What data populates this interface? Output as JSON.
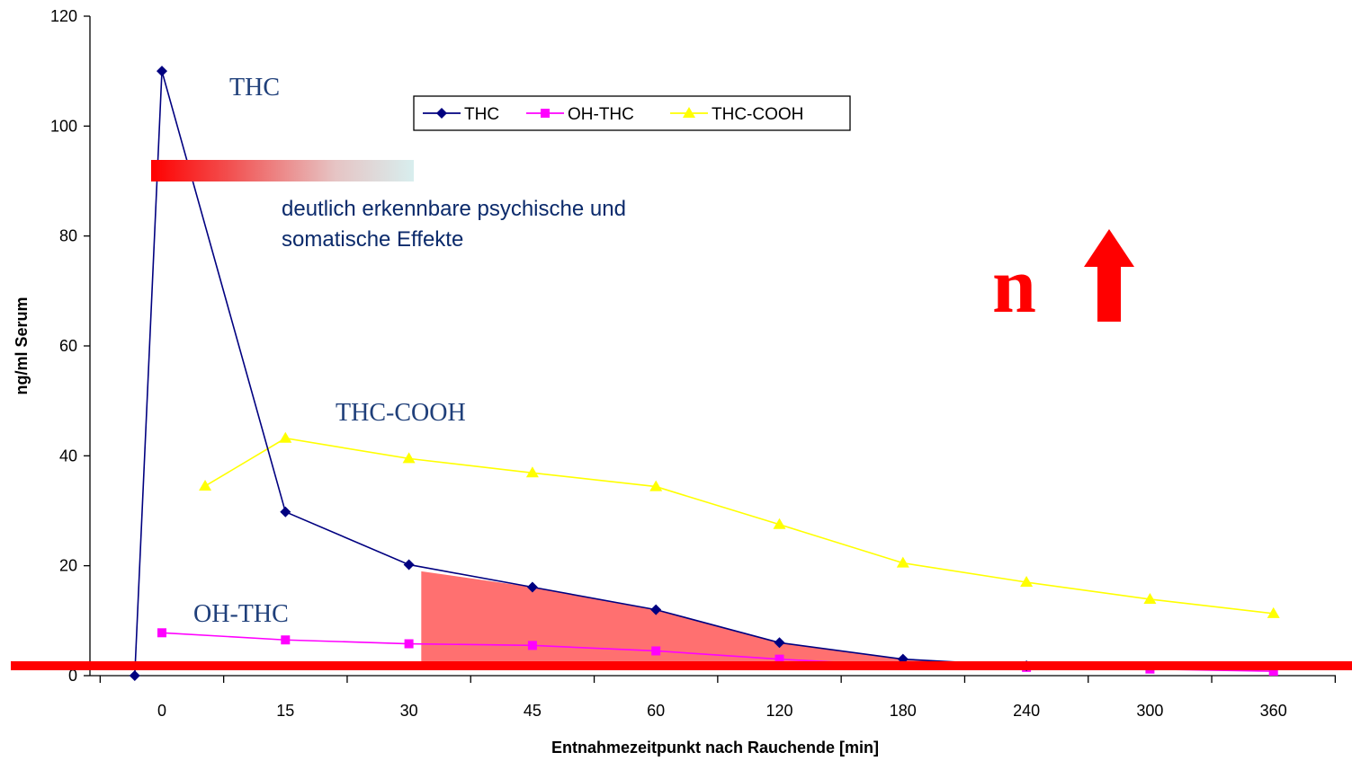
{
  "chart_data": {
    "type": "line",
    "title": "",
    "xlabel": "Entnahmezeitpunkt nach Rauchende [min]",
    "ylabel": "ng/ml Serum",
    "ylim": [
      0,
      120
    ],
    "yticks": [
      0,
      20,
      40,
      60,
      80,
      100,
      120
    ],
    "categories": [
      "0",
      "15",
      "30",
      "45",
      "60",
      "120",
      "180",
      "240",
      "300",
      "360"
    ],
    "series": [
      {
        "name": "THC",
        "color": "#000080",
        "marker": "diamond",
        "points": [
          {
            "x": -0.22,
            "y": 0
          },
          {
            "x": 0,
            "y": 110
          },
          {
            "x": 1,
            "y": 29.8
          },
          {
            "x": 2,
            "y": 20.2
          },
          {
            "x": 3,
            "y": 16.1
          },
          {
            "x": 4,
            "y": 12
          },
          {
            "x": 5,
            "y": 6
          },
          {
            "x": 6,
            "y": 3
          },
          {
            "x": 7,
            "y": 1.8
          }
        ]
      },
      {
        "name": "OH-THC",
        "color": "#ff00ff",
        "marker": "square",
        "points": [
          {
            "x": 0,
            "y": 7.8
          },
          {
            "x": 1,
            "y": 6.5
          },
          {
            "x": 2,
            "y": 5.8
          },
          {
            "x": 3,
            "y": 5.5
          },
          {
            "x": 4,
            "y": 4.5
          },
          {
            "x": 5,
            "y": 3
          },
          {
            "x": 6,
            "y": 1.8
          },
          {
            "x": 7,
            "y": 1.5
          },
          {
            "x": 8,
            "y": 1.2
          },
          {
            "x": 9,
            "y": 0.8
          }
        ]
      },
      {
        "name": "THC-COOH",
        "color": "#ffff00",
        "marker": "triangle",
        "points": [
          {
            "x": 0.35,
            "y": 34.5
          },
          {
            "x": 1,
            "y": 43.2
          },
          {
            "x": 2,
            "y": 39.5
          },
          {
            "x": 3,
            "y": 36.9
          },
          {
            "x": 4,
            "y": 34.4
          },
          {
            "x": 5,
            "y": 27.5
          },
          {
            "x": 6,
            "y": 20.5
          },
          {
            "x": 7,
            "y": 17
          },
          {
            "x": 8,
            "y": 13.9
          },
          {
            "x": 9,
            "y": 11.3
          }
        ]
      }
    ],
    "legend": {
      "position": "top-center",
      "entries": [
        "THC",
        "OH-THC",
        "THC-COOH"
      ]
    },
    "annotations": {
      "thc_label": "THC",
      "thc_cooh_label": "THC-COOH",
      "oh_thc_label": "OH-THC",
      "effects_line1": "deutlich erkennbare psychische und",
      "effects_line2": "somatische Effekte",
      "big_letter": "n"
    },
    "label_color": "#1f3f7a",
    "highlight_color": "#ff0000",
    "shaded_area_color": "#ff7070"
  }
}
